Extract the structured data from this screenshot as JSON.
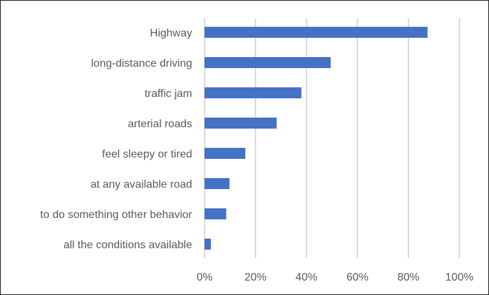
{
  "chart_data": {
    "type": "bar",
    "orientation": "horizontal",
    "categories": [
      "Highway",
      "long-distance driving",
      "traffic jam",
      "arterial roads",
      "feel sleepy or tired",
      "at any available road",
      "to do something other behavior",
      "all the conditions available"
    ],
    "values": [
      0.875,
      0.495,
      0.38,
      0.283,
      0.16,
      0.098,
      0.085,
      0.025
    ],
    "xlim": [
      0,
      1
    ],
    "x_ticks": [
      0,
      0.2,
      0.4,
      0.6,
      0.8,
      1.0
    ],
    "x_tick_labels": [
      "0%",
      "20%",
      "40%",
      "60%",
      "80%",
      "100%"
    ],
    "title": "",
    "xlabel": "",
    "ylabel": "",
    "grid": "vertical",
    "legend": "none",
    "bar_color": "#4472c4",
    "grid_color": "#d9d9d9"
  }
}
